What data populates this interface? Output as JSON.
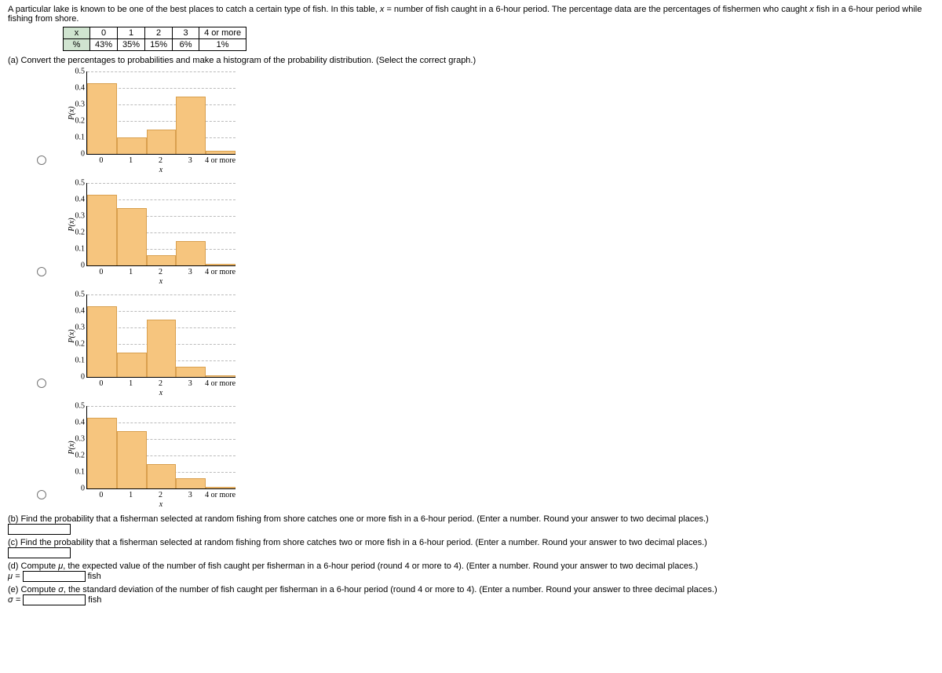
{
  "intro_pre": "A particular lake is known to be one of the best places to catch a certain type of fish. In this table, ",
  "intro_var": "x",
  "intro_mid": " = number of fish caught in a 6-hour period. The percentage data are the percentages of fishermen who caught ",
  "intro_var2": "x",
  "intro_post": " fish in a 6-hour period while fishing from shore.",
  "table": {
    "row_header": [
      "x",
      "0",
      "1",
      "2",
      "3",
      "4 or more"
    ],
    "row_values": [
      "%",
      "43%",
      "35%",
      "15%",
      "6%",
      "1%"
    ]
  },
  "part_a": "(a) Convert the percentages to probabilities and make a histogram of the probability distribution. (Select the correct graph.)",
  "chart_common": {
    "y_ticks": [
      "0",
      "0.1",
      "0.2",
      "0.3",
      "0.4",
      "0.5"
    ],
    "y_max": 0.5,
    "x_ticks": [
      "0",
      "1",
      "2",
      "3",
      "4 or more"
    ],
    "x_label": "x",
    "y_label": "P(x)",
    "bg_color": "#ffffff",
    "grid_color": "#bbbbbb",
    "bar_fill": "#f6c57e",
    "bar_border": "#d9a04f",
    "y_tick_fontsize": 10,
    "x_tick_fontsize": 10
  },
  "charts": [
    {
      "values": [
        0.43,
        0.1,
        0.15,
        0.35,
        0.02
      ]
    },
    {
      "values": [
        0.43,
        0.35,
        0.06,
        0.15,
        0.01
      ]
    },
    {
      "values": [
        0.43,
        0.15,
        0.35,
        0.06,
        0.01
      ]
    },
    {
      "values": [
        0.43,
        0.35,
        0.15,
        0.06,
        0.01
      ]
    }
  ],
  "part_b": "(b) Find the probability that a fisherman selected at random fishing from shore catches one or more fish in a 6-hour period. (Enter a number. Round your answer to two decimal places.)",
  "part_c": "(c) Find the probability that a fisherman selected at random fishing from shore catches two or more fish in a 6-hour period. (Enter a number. Round your answer to two decimal places.)",
  "part_d_pre": "(d) Compute ",
  "part_d_sym": "μ",
  "part_d_post": ", the expected value of the number of fish caught per fisherman in a 6-hour period (round 4 or more to 4). (Enter a number. Round your answer to two decimal places.)",
  "part_d_prefix": "μ = ",
  "part_d_unit": " fish",
  "part_e_pre": "(e) Compute ",
  "part_e_sym": "σ",
  "part_e_post": ", the standard deviation of the number of fish caught per fisherman in a 6-hour period (round 4 or more to 4). (Enter a number. Round your answer to three decimal places.)",
  "part_e_prefix": "σ = ",
  "part_e_unit": " fish"
}
